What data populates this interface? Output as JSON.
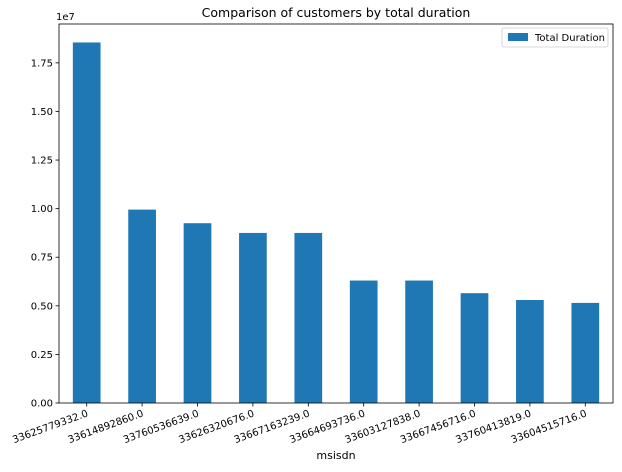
{
  "chart_data": {
    "type": "bar",
    "title": "Comparison of customers  by total duration",
    "xlabel": "msisdn",
    "ylabel": "",
    "y_offset_label": "1e7",
    "ylim": [
      0,
      1.95
    ],
    "y_ticks": [
      0.0,
      0.25,
      0.5,
      0.75,
      1.0,
      1.25,
      1.5,
      1.75
    ],
    "y_tick_labels": [
      "0.00",
      "0.25",
      "0.50",
      "0.75",
      "1.00",
      "1.25",
      "1.50",
      "1.75"
    ],
    "categories": [
      "33625779332.0",
      "33614892860.0",
      "33760536639.0",
      "33626320676.0",
      "33667163239.0",
      "33664693736.0",
      "33603127838.0",
      "33667456716.0",
      "33760413819.0",
      "33604515716.0"
    ],
    "series": [
      {
        "name": "Total Duration",
        "color": "#1f77b4",
        "values": [
          1.855,
          0.995,
          0.925,
          0.875,
          0.875,
          0.63,
          0.63,
          0.565,
          0.53,
          0.515
        ]
      }
    ],
    "legend": {
      "position": "top-right",
      "entries": [
        "Total Duration"
      ]
    },
    "grid": false,
    "x_tick_rotation": "rotated ~20°"
  }
}
